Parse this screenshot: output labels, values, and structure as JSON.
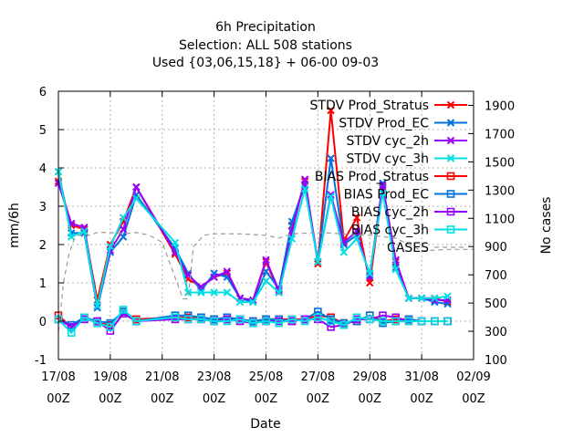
{
  "chart_data": {
    "type": "line",
    "title_lines": [
      "6h Precipitation",
      "Selection: ALL    508 stations",
      "Used {03,06,15,18} + 06-00 09-03"
    ],
    "xlabel": "Date",
    "ylabel": "mm/6h",
    "y2label": "No cases",
    "x_ticks": [
      {
        "day": 0,
        "line1": "17/08",
        "line2": "00Z"
      },
      {
        "day": 2,
        "line1": "19/08",
        "line2": "00Z"
      },
      {
        "day": 4,
        "line1": "21/08",
        "line2": "00Z"
      },
      {
        "day": 6,
        "line1": "23/08",
        "line2": "00Z"
      },
      {
        "day": 8,
        "line1": "25/08",
        "line2": "00Z"
      },
      {
        "day": 10,
        "line1": "27/08",
        "line2": "00Z"
      },
      {
        "day": 12,
        "line1": "29/08",
        "line2": "00Z"
      },
      {
        "day": 14,
        "line1": "31/08",
        "line2": "00Z"
      },
      {
        "day": 16,
        "line1": "02/09",
        "line2": "00Z"
      }
    ],
    "xlim": [
      0,
      16
    ],
    "ylim": [
      -1,
      6
    ],
    "y_ticks": [
      "-1",
      "0",
      "1",
      "2",
      "3",
      "4",
      "5",
      "6"
    ],
    "y2lim": [
      100,
      2000
    ],
    "y2_ticks": [
      "100",
      "300",
      "500",
      "700",
      "900",
      "1100",
      "1300",
      "1500",
      "1700",
      "1900"
    ],
    "grid": true,
    "legend_position": "top-right inside",
    "series": [
      {
        "name": "STDV Prod_Stratus",
        "color": "#ff0000",
        "marker": "x",
        "axis": "y",
        "x": [
          0,
          0.5,
          1,
          1.5,
          2,
          2.5,
          3,
          4.5,
          5,
          5.5,
          6,
          6.5,
          7,
          7.5,
          8,
          8.5,
          9,
          9.5,
          10,
          10.5,
          11,
          11.5,
          12,
          12.5,
          13,
          13.5,
          14,
          14.5,
          15
        ],
        "y": [
          3.65,
          2.5,
          2.4,
          0.55,
          2.0,
          2.6,
          3.5,
          1.75,
          1.1,
          0.9,
          1.15,
          1.25,
          0.6,
          0.55,
          1.55,
          0.75,
          2.5,
          3.65,
          1.5,
          5.5,
          2.1,
          2.7,
          1.0,
          3.5,
          1.55,
          0.6,
          0.6,
          0.6,
          0.5
        ]
      },
      {
        "name": "STDV Prod_EC",
        "color": "#0072e0",
        "marker": "x",
        "axis": "y",
        "x": [
          0,
          0.5,
          1,
          1.5,
          2,
          2.5,
          3,
          4.5,
          5,
          5.5,
          6,
          6.5,
          7,
          7.5,
          8,
          8.5,
          9,
          9.5,
          10,
          10.5,
          11,
          11.5,
          12,
          12.5,
          13,
          13.5,
          14,
          14.5,
          15
        ],
        "y": [
          3.9,
          2.3,
          2.3,
          0.35,
          1.8,
          2.2,
          3.3,
          1.9,
          1.25,
          0.8,
          1.25,
          1.15,
          0.6,
          0.5,
          1.3,
          0.85,
          2.6,
          3.55,
          1.55,
          4.25,
          2.0,
          2.25,
          1.2,
          3.6,
          1.4,
          0.6,
          0.6,
          0.5,
          0.45
        ]
      },
      {
        "name": "STDV cyc_2h",
        "color": "#9a00ff",
        "marker": "x",
        "axis": "y",
        "x": [
          0,
          0.5,
          1,
          1.5,
          2,
          2.5,
          3,
          4.5,
          5,
          5.5,
          6,
          6.5,
          7,
          7.5,
          8,
          8.5,
          9,
          9.5,
          10,
          10.5,
          11,
          11.5,
          12,
          12.5,
          13,
          13.5,
          14,
          14.5,
          15
        ],
        "y": [
          3.6,
          2.55,
          2.45,
          0.4,
          1.85,
          2.4,
          3.5,
          1.8,
          1.2,
          0.9,
          1.15,
          1.3,
          0.6,
          0.55,
          1.6,
          0.8,
          2.35,
          3.7,
          1.55,
          3.3,
          2.05,
          2.35,
          1.15,
          3.55,
          1.6,
          0.6,
          0.6,
          0.55,
          0.55
        ]
      },
      {
        "name": "STDV cyc_3h",
        "color": "#00e0e0",
        "marker": "x",
        "axis": "y",
        "x": [
          0,
          0.5,
          1,
          1.5,
          2,
          2.5,
          3,
          4.5,
          5,
          5.5,
          6,
          6.5,
          7,
          7.5,
          8,
          8.5,
          9,
          9.5,
          10,
          10.5,
          11,
          11.5,
          12,
          12.5,
          13,
          13.5,
          14,
          14.5,
          15
        ],
        "y": [
          3.9,
          2.2,
          2.35,
          0.4,
          1.95,
          2.7,
          3.2,
          2.05,
          0.75,
          0.75,
          0.75,
          0.75,
          0.5,
          0.5,
          1.05,
          0.75,
          2.15,
          3.45,
          1.55,
          3.25,
          1.8,
          2.15,
          1.25,
          3.35,
          1.35,
          0.6,
          0.6,
          0.6,
          0.65
        ]
      },
      {
        "name": "BIAS Prod_Stratus",
        "color": "#ff0000",
        "marker": "square",
        "axis": "y",
        "x": [
          0,
          0.5,
          1,
          1.5,
          2,
          2.5,
          3,
          4.5,
          5,
          5.5,
          6,
          6.5,
          7,
          7.5,
          8,
          8.5,
          9,
          9.5,
          10,
          10.5,
          11,
          11.5,
          12,
          12.5,
          13,
          13.5,
          14,
          14.5,
          15
        ],
        "y": [
          0.15,
          -0.15,
          0.1,
          -0.05,
          -0.1,
          0.25,
          0.05,
          0.1,
          0.1,
          0.1,
          0.05,
          0.05,
          0.05,
          0.0,
          0.05,
          0.05,
          0.05,
          0.05,
          0.15,
          0.1,
          -0.05,
          0.0,
          0.15,
          0.0,
          0.05,
          0.05,
          0.0,
          0.0,
          0.0
        ]
      },
      {
        "name": "BIAS Prod_EC",
        "color": "#0072e0",
        "marker": "square",
        "axis": "y",
        "x": [
          0,
          0.5,
          1,
          1.5,
          2,
          2.5,
          3,
          4.5,
          5,
          5.5,
          6,
          6.5,
          7,
          7.5,
          8,
          8.5,
          9,
          9.5,
          10,
          10.5,
          11,
          11.5,
          12,
          12.5,
          13,
          13.5,
          14,
          14.5,
          15
        ],
        "y": [
          0.05,
          -0.1,
          0.1,
          0.0,
          -0.05,
          0.25,
          0.0,
          0.15,
          0.15,
          0.1,
          0.05,
          0.1,
          0.05,
          0.0,
          0.05,
          0.05,
          0.0,
          0.05,
          0.25,
          0.05,
          -0.05,
          0.0,
          0.15,
          -0.05,
          0.0,
          0.05,
          0.0,
          0.0,
          0.0
        ]
      },
      {
        "name": "BIAS cyc_2h",
        "color": "#9a00ff",
        "marker": "square",
        "axis": "y",
        "x": [
          0,
          0.5,
          1,
          1.5,
          2,
          2.5,
          3,
          4.5,
          5,
          5.5,
          6,
          6.5,
          7,
          7.5,
          8,
          8.5,
          9,
          9.5,
          10,
          10.5,
          11,
          11.5,
          12,
          12.5,
          13,
          13.5,
          14,
          14.5,
          15
        ],
        "y": [
          0.05,
          -0.15,
          0.05,
          0.0,
          -0.25,
          0.2,
          0.0,
          0.05,
          0.05,
          0.05,
          0.0,
          0.05,
          0.0,
          -0.05,
          0.0,
          0.0,
          0.0,
          0.05,
          0.05,
          -0.15,
          -0.1,
          0.05,
          0.05,
          0.15,
          0.1,
          0.0,
          0.0,
          0.0,
          0.0
        ]
      },
      {
        "name": "BIAS cyc_3h",
        "color": "#00e0e0",
        "marker": "square",
        "axis": "y",
        "x": [
          0,
          0.5,
          1,
          1.5,
          2,
          2.5,
          3,
          4.5,
          5,
          5.5,
          6,
          6.5,
          7,
          7.5,
          8,
          8.5,
          9,
          9.5,
          10,
          10.5,
          11,
          11.5,
          12,
          12.5,
          13,
          13.5,
          14,
          14.5,
          15
        ],
        "y": [
          0.05,
          -0.3,
          0.1,
          -0.05,
          -0.15,
          0.3,
          0.0,
          0.1,
          0.05,
          0.05,
          0.0,
          0.0,
          0.05,
          -0.05,
          0.0,
          -0.05,
          0.05,
          0.0,
          0.1,
          0.0,
          -0.1,
          0.1,
          0.05,
          0.0,
          0.0,
          0.0,
          0.0,
          0.0,
          0.0
        ]
      },
      {
        "name": "CASES",
        "color": "#999999",
        "marker": "none",
        "dash": true,
        "axis": "y2",
        "x": [
          0,
          0.2,
          0.4,
          0.6,
          0.8,
          1.0,
          1.2,
          1.5,
          2.0,
          2.5,
          3.0,
          3.5,
          4.0,
          4.5,
          4.8,
          5.0,
          5.2,
          5.6,
          6.0,
          7.0,
          8.0,
          8.5,
          9.0,
          10.0,
          11.0,
          12.0,
          13.0,
          14.0,
          15.0,
          16.0
        ],
        "y": [
          300,
          650,
          840,
          950,
          980,
          990,
          980,
          1000,
          1000,
          990,
          1000,
          980,
          930,
          680,
          530,
          530,
          900,
          980,
          990,
          990,
          980,
          960,
          990,
          1000,
          990,
          980,
          960,
          870,
          880,
          880
        ]
      }
    ]
  }
}
